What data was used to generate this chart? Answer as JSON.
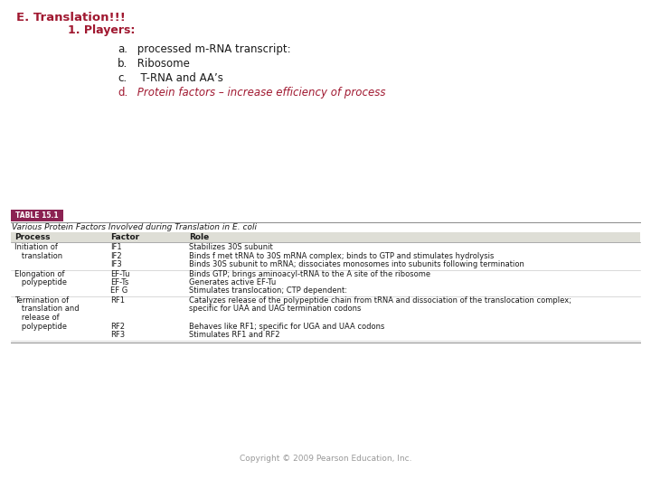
{
  "bg_color": "#ffffff",
  "title1": "E. Translation!!!",
  "title2": "1. Players:",
  "items": [
    {
      "label": "a.",
      "text": " processed m-RNA transcript:",
      "red": false
    },
    {
      "label": "b.",
      "text": " Ribosome",
      "red": false
    },
    {
      "label": "c.",
      "text": "  T-RNA and AA’s",
      "red": false
    },
    {
      "label": "d.",
      "text": " Protein factors – increase efficiency of process",
      "red": true
    }
  ],
  "title_color": "#a01830",
  "black": "#1a1a1a",
  "table_header_bg": "#8B2252",
  "table_header_text": "TABLE 15.1",
  "table_title": "Various Protein Factors Involved during Translation in E. coli",
  "table_col_headers": [
    "Process",
    "Factor",
    "Role"
  ],
  "table_col_bg": "#deded6",
  "table_row_data": [
    {
      "process": [
        "Initiation of",
        "   translation"
      ],
      "factors": [
        "IF1",
        "IF2",
        "IF3"
      ],
      "roles": [
        "Stabilizes 30S subunit",
        "Binds f met tRNA to 30S mRNA complex; binds to GTP and stimulates hydrolysis",
        "Binds 30S subunit to mRNA; dissociates monosomes into subunits following termination"
      ]
    },
    {
      "process": [
        "Elongation of",
        "   polypeptide"
      ],
      "factors": [
        "EF-Tu",
        "EF-Ts",
        "EF G"
      ],
      "roles": [
        "Binds GTP; brings aminoacyl-tRNA to the A site of the ribosome",
        "Generates active EF-Tu",
        "Stimulates translocation; CTP dependent:"
      ]
    },
    {
      "process": [
        "Termination of",
        "   translation and",
        "   release of",
        "   polypeptide"
      ],
      "factors": [
        "RF1",
        "",
        "",
        "RF2",
        "RF3"
      ],
      "roles": [
        "Catalyzes release of the polypeptide chain from tRNA and dissociation of the translocation complex;",
        "specific for UAA and UAG termination codons",
        "",
        "Behaves like RF1; specific for UGA and UAA codons",
        "Stimulates RF1 and RF2"
      ]
    }
  ],
  "copyright": "Copyright © 2009 Pearson Education, Inc.",
  "table_line_color": "#bbbbbb",
  "line_color_dark": "#888888"
}
